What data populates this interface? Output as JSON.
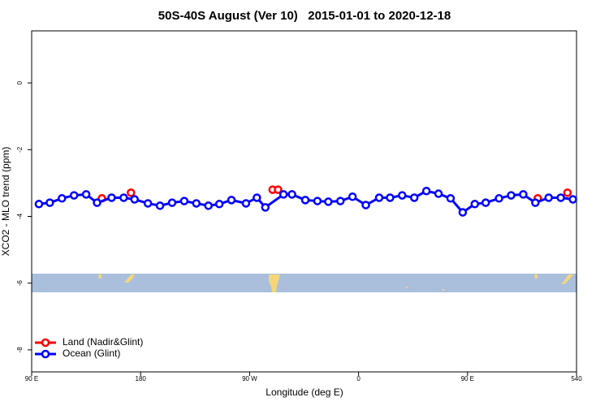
{
  "chart_data": {
    "type": "line",
    "title": "50S-40S August (Ver 10)   2015-01-01 to 2020-12-18",
    "x_label": "Longitude (deg E)",
    "y_label": "XCO2 - MLO trend (ppm)",
    "xlim": [
      90,
      540
    ],
    "ylim": [
      -8.66,
      1.56
    ],
    "xticks": [
      {
        "value": 90,
        "label": "90 E"
      },
      180,
      {
        "value": 270,
        "label": "90 W"
      },
      {
        "value": 360,
        "label": "0"
      },
      {
        "value": 450,
        "label": "90 E"
      },
      540
    ],
    "yticks": [
      0,
      -2,
      -4,
      -6,
      -8
    ],
    "legend": "bottom-left",
    "series": [
      {
        "name": "Land (Nadir&Glint)",
        "color": "#ff0000",
        "line": false,
        "x": [
          148,
          172,
          289,
          293.5,
          508,
          532.5
        ],
        "values": [
          -3.46,
          -3.29,
          -3.2,
          -3.2,
          -3.46,
          -3.29
        ]
      },
      {
        "name": "Ocean (Glint)",
        "color": "#0000ff",
        "line": true,
        "x": [
          96,
          105,
          115,
          125,
          135,
          144,
          156,
          166,
          175,
          186,
          196,
          206,
          216,
          226,
          236,
          245,
          255,
          267,
          276,
          283,
          298,
          305,
          316,
          326,
          335,
          345,
          355,
          366,
          377,
          386,
          396,
          406,
          416,
          426,
          436,
          446,
          456,
          465,
          476,
          486,
          496,
          506,
          517,
          527,
          537
        ],
        "values": [
          -3.63,
          -3.59,
          -3.46,
          -3.37,
          -3.34,
          -3.59,
          -3.44,
          -3.44,
          -3.49,
          -3.61,
          -3.68,
          -3.59,
          -3.54,
          -3.61,
          -3.68,
          -3.63,
          -3.51,
          -3.61,
          -3.44,
          -3.73,
          -3.34,
          -3.34,
          -3.51,
          -3.54,
          -3.56,
          -3.54,
          -3.41,
          -3.66,
          -3.44,
          -3.44,
          -3.37,
          -3.44,
          -3.24,
          -3.32,
          -3.46,
          -3.88,
          -3.63,
          -3.59,
          -3.46,
          -3.37,
          -3.34,
          -3.59,
          -3.44,
          -3.44,
          -3.49
        ]
      }
    ]
  }
}
